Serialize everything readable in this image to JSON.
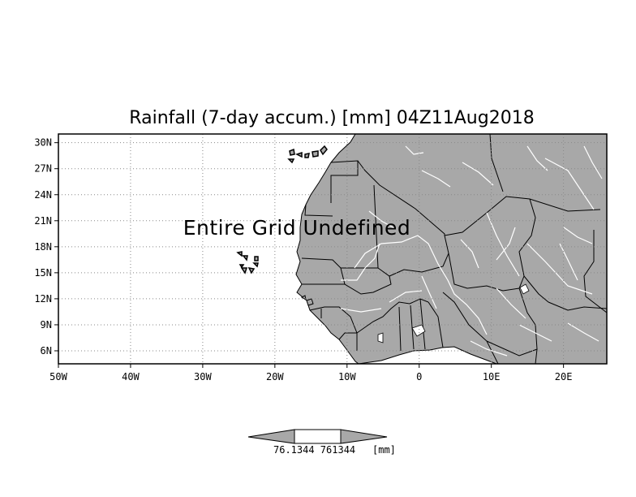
{
  "map": {
    "title": "Rainfall (7-day accum.) [mm] 04Z11Aug2018",
    "overlay_note": "Entire Grid Undefined",
    "lon_ticks": [
      "50W",
      "40W",
      "30W",
      "20W",
      "10W",
      "0",
      "10E",
      "20E"
    ],
    "lat_ticks": [
      "30N",
      "27N",
      "24N",
      "21N",
      "18N",
      "15N",
      "12N",
      "9N",
      "6N"
    ],
    "lon_values": [
      -50,
      -40,
      -30,
      -20,
      -10,
      0,
      10,
      20
    ],
    "lat_values": [
      30,
      27,
      24,
      21,
      18,
      15,
      12,
      9,
      6
    ],
    "extent": {
      "lon": [
        -50,
        26
      ],
      "lat": [
        4.5,
        31
      ]
    },
    "colors": {
      "land": "#a8a8a8",
      "ocean": "#ffffff",
      "rivers": "#ffffff",
      "borders": "#000000",
      "grid": "#888888"
    }
  },
  "colorbar": {
    "label": "76.1344 761344",
    "unit": "[mm]",
    "colors": {
      "fill": "#a8a8a8"
    }
  }
}
